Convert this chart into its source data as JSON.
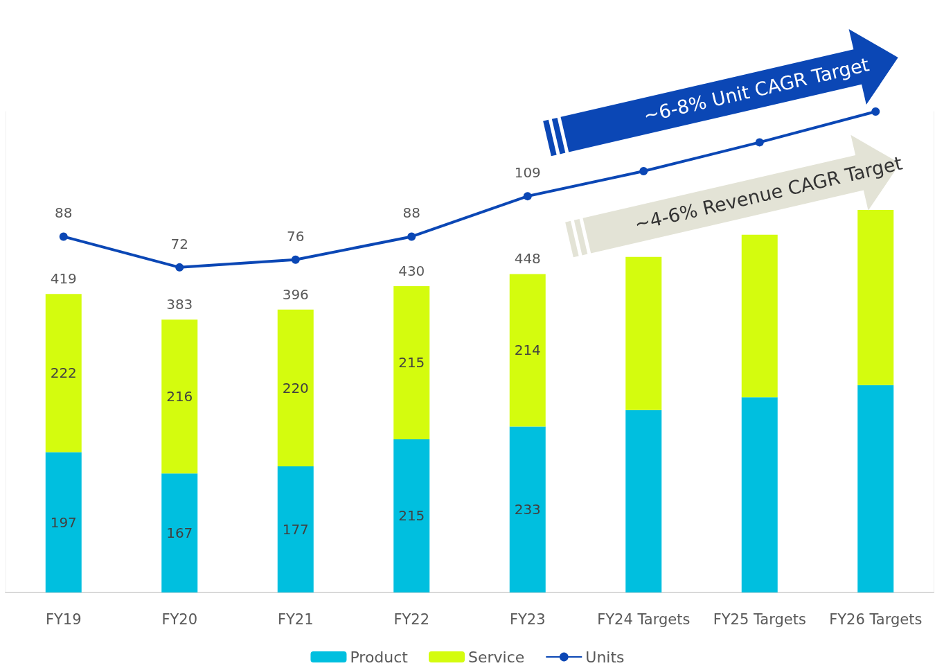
{
  "chart_data": {
    "type": "bar",
    "stacked": true,
    "categories": [
      "FY19",
      "FY20",
      "FY21",
      "FY22",
      "FY23",
      "FY24 Targets",
      "FY25 Targets",
      "FY26 Targets"
    ],
    "series": [
      {
        "name": "Product",
        "color": "#00bfdf",
        "values": [
          197,
          167,
          177,
          215,
          233,
          256,
          274,
          291
        ],
        "value_labels": [
          "197",
          "167",
          "177",
          "215",
          "233",
          null,
          null,
          null
        ]
      },
      {
        "name": "Service",
        "color": "#d4fc0e",
        "values": [
          222,
          216,
          220,
          215,
          214,
          215,
          228,
          246
        ],
        "value_labels": [
          "222",
          "216",
          "220",
          "215",
          "214",
          null,
          null,
          null
        ]
      },
      {
        "name": "Units",
        "type": "line",
        "axis": "y2",
        "color": "#0b47b5",
        "values": [
          88,
          72,
          76,
          88,
          109,
          122,
          137,
          153
        ],
        "value_labels": [
          "88",
          "72",
          "76",
          "88",
          "109",
          null,
          null,
          null
        ]
      }
    ],
    "totals": [
      "419",
      "383",
      "396",
      "430",
      "448",
      null,
      null,
      null
    ],
    "ylim": [
      0,
      675
    ],
    "y2lim": [
      -97,
      153
    ],
    "annotations": [
      "~6-8% Unit CAGR Target",
      "~4-6% Revenue CAGR Target"
    ],
    "legend": "bottom",
    "marker": "circle",
    "line_style": "solid",
    "tick_labels": "x"
  }
}
